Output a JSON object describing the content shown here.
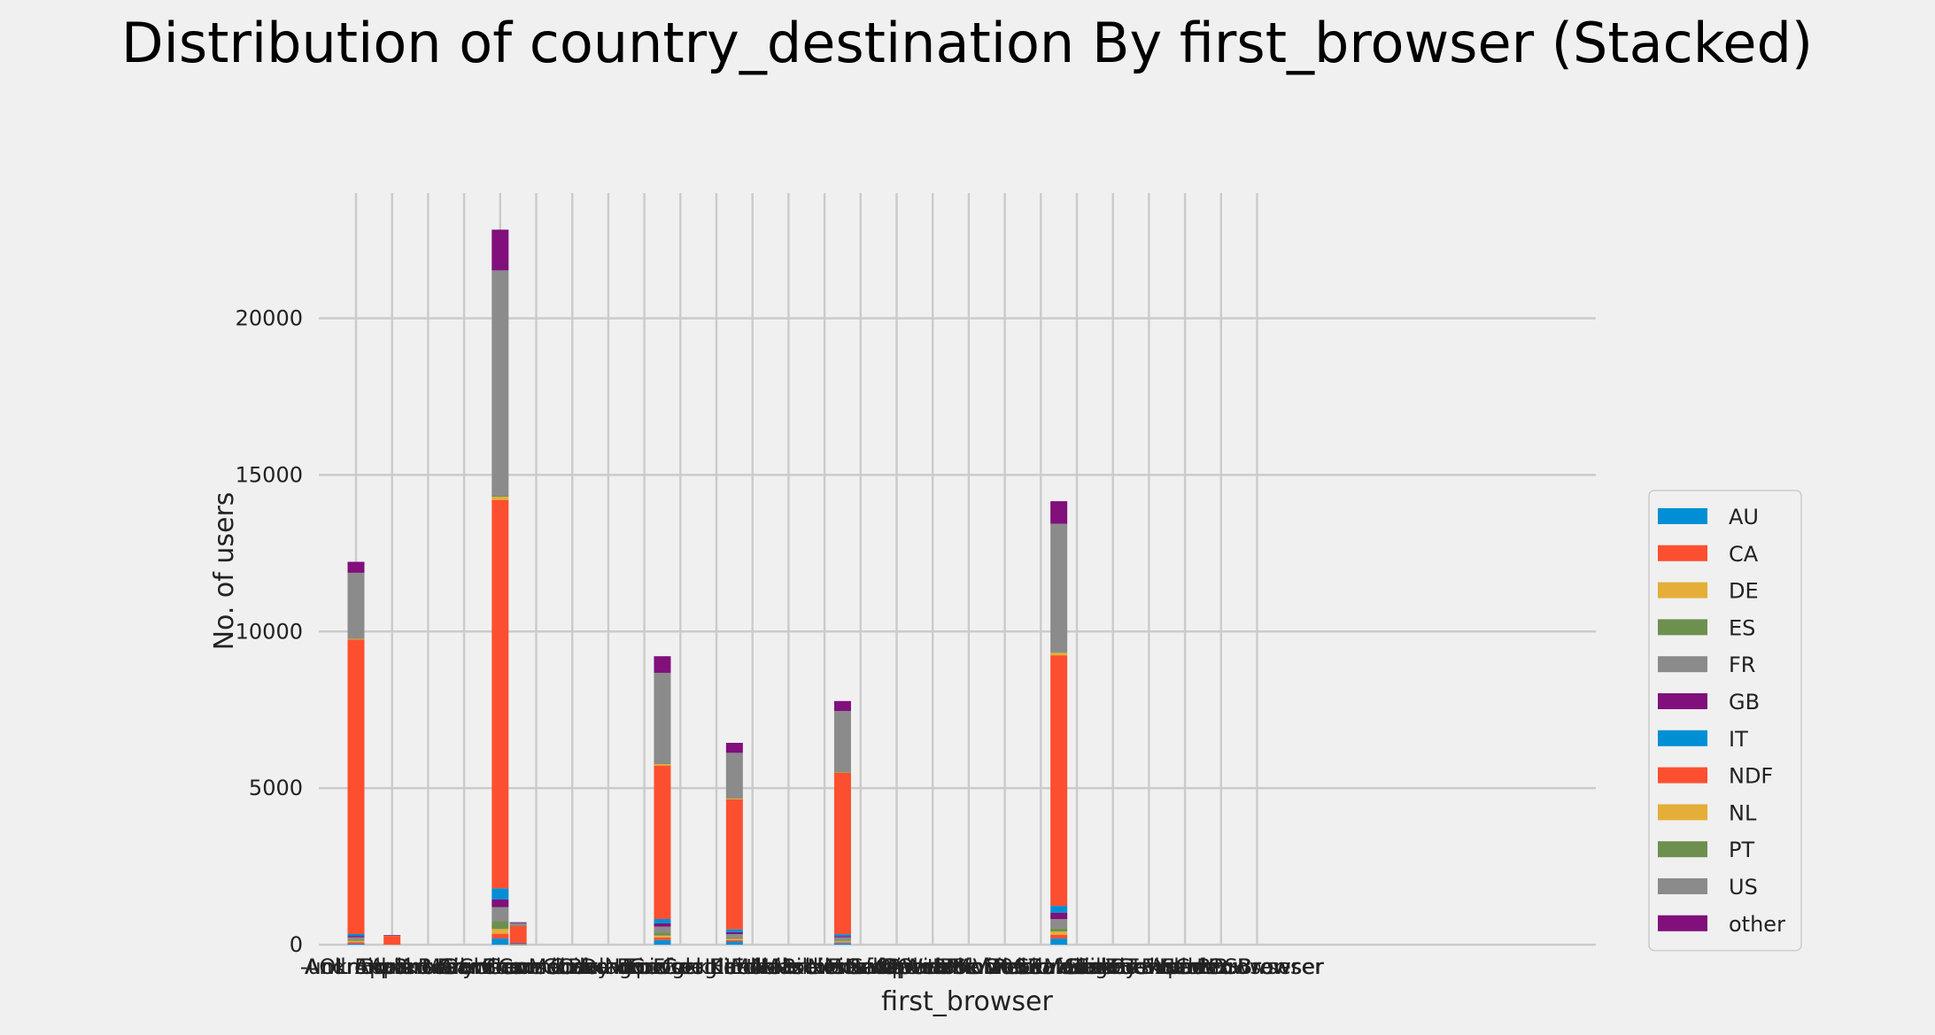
{
  "chart_data": {
    "type": "bar",
    "stacked": true,
    "title": "Distribution of country_destination By first_browser (Stacked)",
    "xlabel": "first_browser",
    "ylabel": "No. of users",
    "ylim": [
      0,
      24000
    ],
    "yticks": [
      0,
      5000,
      10000,
      15000,
      20000
    ],
    "grid": true,
    "legend_position": "right",
    "categories": [
      "-unknown-",
      "AOL Explorer",
      "Android Browser",
      "Apple Mail",
      "Arora",
      "Avant Browser",
      "BlackBerry Browser",
      "Camino",
      "Chrome",
      "Chrome Mobile",
      "Chromium",
      "CometBird",
      "Comodo Dragon",
      "Conkeror",
      "CoolNovo",
      "Crazy Browser",
      "Epic",
      "Firefox",
      "Flock",
      "Google Earth",
      "Googlebot",
      "IE",
      "IE Mobile",
      "Iceweasel",
      "Kindle Browser",
      "Maxthon",
      "Mobile Firefox",
      "Mobile Safari",
      "Mozilla",
      "NetNewsWire",
      "OmniWeb",
      "Opera",
      "Opera Mini",
      "Opera Mobile",
      "Outlook 2007",
      "Pale Moon",
      "Palm Pre web browser",
      "PS Vita browser",
      "RockMelt",
      "Safari",
      "SeaMonkey",
      "Silk",
      "SiteKiosk",
      "SlimBrowser",
      "Sogou Explorer",
      "Stainless",
      "TenFourFox",
      "TheWorld Browser",
      "UC Browser",
      "Yandex.Browser",
      "wOSBrowser"
    ],
    "series": [
      {
        "name": "AU",
        "color": "#008fd5",
        "values": [
          30,
          0,
          0,
          0,
          0,
          0,
          0,
          0,
          200,
          5,
          0,
          0,
          0,
          0,
          0,
          0,
          0,
          150,
          0,
          0,
          0,
          100,
          0,
          0,
          0,
          0,
          0,
          50,
          0,
          0,
          0,
          0,
          0,
          0,
          0,
          0,
          0,
          0,
          0,
          200,
          0,
          0,
          0,
          0,
          0,
          0,
          0,
          0,
          0,
          0,
          0
        ]
      },
      {
        "name": "CA",
        "color": "#fc4f30",
        "values": [
          50,
          0,
          0,
          0,
          0,
          0,
          0,
          0,
          150,
          5,
          0,
          0,
          0,
          0,
          0,
          0,
          0,
          80,
          0,
          0,
          0,
          50,
          0,
          0,
          0,
          0,
          0,
          30,
          0,
          0,
          0,
          0,
          0,
          0,
          0,
          0,
          0,
          0,
          0,
          120,
          0,
          0,
          0,
          0,
          0,
          0,
          0,
          0,
          0,
          0,
          0
        ]
      },
      {
        "name": "DE",
        "color": "#e5ae38",
        "values": [
          40,
          0,
          0,
          0,
          0,
          0,
          0,
          0,
          150,
          3,
          0,
          0,
          0,
          0,
          0,
          0,
          0,
          60,
          0,
          0,
          0,
          40,
          0,
          0,
          0,
          0,
          0,
          25,
          0,
          0,
          0,
          0,
          0,
          0,
          0,
          0,
          0,
          0,
          0,
          100,
          0,
          0,
          0,
          0,
          0,
          0,
          0,
          0,
          0,
          0,
          0
        ]
      },
      {
        "name": "ES",
        "color": "#6d904f",
        "values": [
          40,
          0,
          0,
          0,
          0,
          0,
          0,
          0,
          250,
          5,
          0,
          0,
          0,
          0,
          0,
          0,
          0,
          90,
          0,
          0,
          0,
          40,
          0,
          0,
          0,
          0,
          0,
          30,
          0,
          0,
          0,
          0,
          0,
          0,
          0,
          0,
          0,
          0,
          0,
          100,
          0,
          0,
          0,
          0,
          0,
          0,
          0,
          0,
          0,
          0,
          0
        ]
      },
      {
        "name": "FR",
        "color": "#8b8b8b",
        "values": [
          80,
          0,
          0,
          0,
          0,
          0,
          0,
          0,
          450,
          15,
          0,
          0,
          0,
          0,
          0,
          0,
          0,
          200,
          0,
          0,
          0,
          110,
          0,
          0,
          0,
          0,
          0,
          100,
          0,
          0,
          0,
          0,
          0,
          0,
          0,
          0,
          0,
          0,
          0,
          300,
          0,
          0,
          0,
          0,
          0,
          0,
          0,
          0,
          0,
          0,
          0
        ]
      },
      {
        "name": "GB",
        "color": "#810f7c",
        "values": [
          40,
          0,
          0,
          0,
          0,
          0,
          0,
          0,
          250,
          10,
          0,
          0,
          0,
          0,
          0,
          0,
          0,
          100,
          0,
          0,
          0,
          60,
          0,
          0,
          0,
          0,
          0,
          40,
          0,
          0,
          0,
          0,
          0,
          0,
          0,
          0,
          0,
          0,
          0,
          200,
          0,
          0,
          0,
          0,
          0,
          0,
          0,
          0,
          0,
          0,
          0
        ]
      },
      {
        "name": "IT",
        "color": "#008fd5",
        "values": [
          60,
          0,
          0,
          0,
          0,
          0,
          0,
          0,
          350,
          10,
          0,
          0,
          0,
          0,
          0,
          0,
          0,
          140,
          0,
          0,
          0,
          90,
          0,
          0,
          0,
          0,
          0,
          60,
          0,
          0,
          0,
          0,
          0,
          0,
          0,
          0,
          0,
          0,
          0,
          220,
          0,
          0,
          0,
          0,
          0,
          0,
          0,
          0,
          0,
          0,
          0
        ]
      },
      {
        "name": "NDF",
        "color": "#fc4f30",
        "values": [
          9400,
          0,
          280,
          0,
          0,
          0,
          0,
          0,
          12400,
          550,
          0,
          0,
          0,
          0,
          0,
          0,
          0,
          4900,
          0,
          0,
          0,
          4150,
          0,
          0,
          0,
          0,
          0,
          5150,
          0,
          0,
          0,
          0,
          0,
          0,
          0,
          0,
          0,
          0,
          0,
          8000,
          0,
          0,
          0,
          0,
          0,
          0,
          0,
          0,
          0,
          0,
          0
        ]
      },
      {
        "name": "NL",
        "color": "#e5ae38",
        "values": [
          30,
          0,
          0,
          0,
          0,
          0,
          0,
          0,
          100,
          3,
          0,
          0,
          0,
          0,
          0,
          0,
          0,
          50,
          0,
          0,
          0,
          30,
          0,
          0,
          0,
          0,
          0,
          20,
          0,
          0,
          0,
          0,
          0,
          0,
          0,
          0,
          0,
          0,
          0,
          80,
          0,
          0,
          0,
          0,
          0,
          0,
          0,
          0,
          0,
          0,
          0
        ]
      },
      {
        "name": "PT",
        "color": "#6d904f",
        "values": [
          5,
          0,
          0,
          0,
          0,
          0,
          0,
          0,
          30,
          1,
          0,
          0,
          0,
          0,
          0,
          0,
          0,
          10,
          0,
          0,
          0,
          5,
          0,
          0,
          0,
          0,
          0,
          5,
          0,
          0,
          0,
          0,
          0,
          0,
          0,
          0,
          0,
          0,
          0,
          20,
          0,
          0,
          0,
          0,
          0,
          0,
          0,
          0,
          0,
          0,
          0
        ]
      },
      {
        "name": "US",
        "color": "#8b8b8b",
        "values": [
          2100,
          0,
          20,
          0,
          0,
          0,
          0,
          0,
          7200,
          80,
          0,
          0,
          0,
          0,
          0,
          0,
          0,
          2900,
          0,
          0,
          0,
          1450,
          0,
          0,
          0,
          0,
          0,
          1950,
          0,
          0,
          0,
          0,
          0,
          0,
          0,
          0,
          0,
          0,
          0,
          4100,
          0,
          0,
          0,
          0,
          0,
          0,
          0,
          0,
          0,
          0,
          0
        ]
      },
      {
        "name": "other",
        "color": "#810f7c",
        "values": [
          350,
          0,
          10,
          0,
          0,
          0,
          0,
          0,
          1300,
          30,
          0,
          0,
          0,
          0,
          0,
          0,
          0,
          530,
          0,
          0,
          0,
          320,
          0,
          0,
          0,
          0,
          0,
          320,
          0,
          0,
          0,
          0,
          0,
          0,
          0,
          0,
          0,
          0,
          0,
          720,
          0,
          0,
          0,
          0,
          0,
          0,
          0,
          0,
          0,
          0,
          0
        ]
      }
    ]
  }
}
